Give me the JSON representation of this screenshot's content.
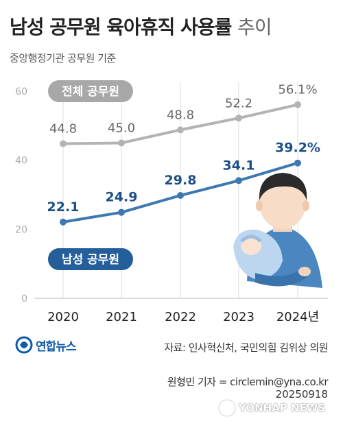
{
  "header": {
    "title": "남성 공무원 육아휴직 사용률",
    "title_suffix": "추이",
    "subtitle": "중앙행정기관 공무원 기준"
  },
  "chart_data": {
    "type": "line",
    "categories": [
      "2020",
      "2021",
      "2022",
      "2023",
      "2024년"
    ],
    "series": [
      {
        "name": "전체 공무원",
        "values": [
          44.8,
          45.0,
          48.8,
          52.2,
          56.1
        ],
        "labels": [
          "44.8",
          "45.0",
          "48.8",
          "52.2",
          "56.1%"
        ],
        "color": "#b3b3b3",
        "label_color": "#666666"
      },
      {
        "name": "남성 공무원",
        "values": [
          22.1,
          24.9,
          29.8,
          34.1,
          39.2
        ],
        "labels": [
          "22.1",
          "24.9",
          "29.8",
          "34.1",
          "39.2%"
        ],
        "color": "#3e78b2",
        "label_color": "#1c4f86"
      }
    ],
    "yticks": [
      "0",
      "20",
      "40",
      "60"
    ],
    "ylim": [
      0,
      60
    ],
    "grid": "vertical"
  },
  "footer": {
    "source": "자료: 인사혁신처, 국민의힘 김위상 의원",
    "reporter": "원형민 기자 = circlemin@yna.co.kr",
    "date": "20250918",
    "logo": "연합뉴스",
    "watermark": "YONHAP NEWS"
  },
  "colors": {
    "gray_line": "#b3b3b3",
    "blue_line": "#3e78b2",
    "blue_label": "#1c4f86",
    "brand": "#0c5aa8"
  },
  "icons": [
    "father-holding-baby-illustration",
    "yonhap-logo-icon"
  ]
}
